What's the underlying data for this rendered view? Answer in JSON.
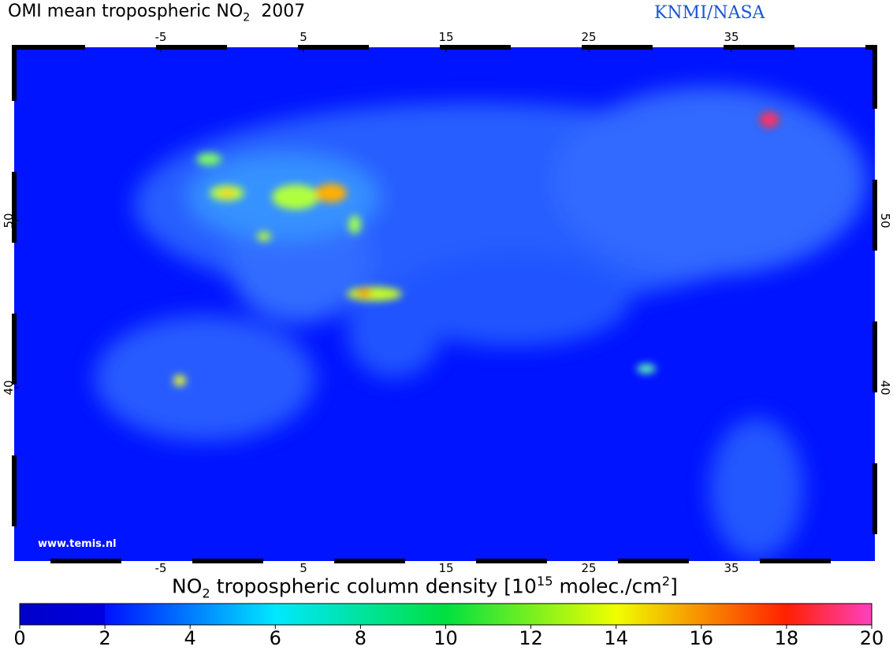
{
  "header": {
    "title": "OMI mean tropospheric NO",
    "title_subscript": "2",
    "year": "2007",
    "credit": "KNMI/NASA"
  },
  "map": {
    "lon_ticks": [
      -5,
      5,
      15,
      25,
      35
    ],
    "lat_ticks": [
      40,
      50
    ],
    "watermark": "www.temis.nl"
  },
  "colorbar": {
    "label_start": "NO",
    "label_subscript": "2",
    "label_middle": "tropospheric column density [10",
    "label_superscript": "15",
    "label_unit": "molec./cm",
    "label_unit_superscript": "2",
    "label_end": "]",
    "ticks": [
      0,
      2,
      4,
      6,
      8,
      10,
      12,
      14,
      16,
      18,
      20
    ]
  }
}
